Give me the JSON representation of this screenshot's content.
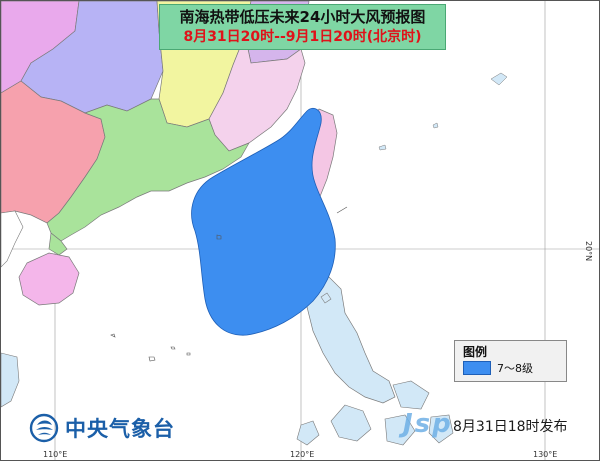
{
  "title": {
    "line1": "南海热带低压未来24小时大风预报图",
    "line2": "8月31日20时--9月1日20时(北京时)"
  },
  "legend": {
    "title": "图例",
    "item_label": "7～8级",
    "item_color": "#3d8ef0"
  },
  "agency": {
    "name": "中央气象台"
  },
  "issued": "8月31日18时发布",
  "watermark": "Jsp",
  "axes": {
    "lon_labels": [
      "110°E",
      "120°E",
      "130°E"
    ],
    "lat_label": "20°N"
  },
  "colors": {
    "sea": "#ffffff",
    "guangdong": "#a9e39b",
    "guangxi": "#f6a1ad",
    "fujian": "#f4d2ec",
    "jiangxi": "#f2f5a0",
    "hunan": "#b7b3f5",
    "guizhou": "#e9a9ec",
    "hainan": "#f4b6ea",
    "taiwan": "#f4c6e4",
    "philippines": "#d2e8f7",
    "wind_area": "#3d8ef0"
  }
}
